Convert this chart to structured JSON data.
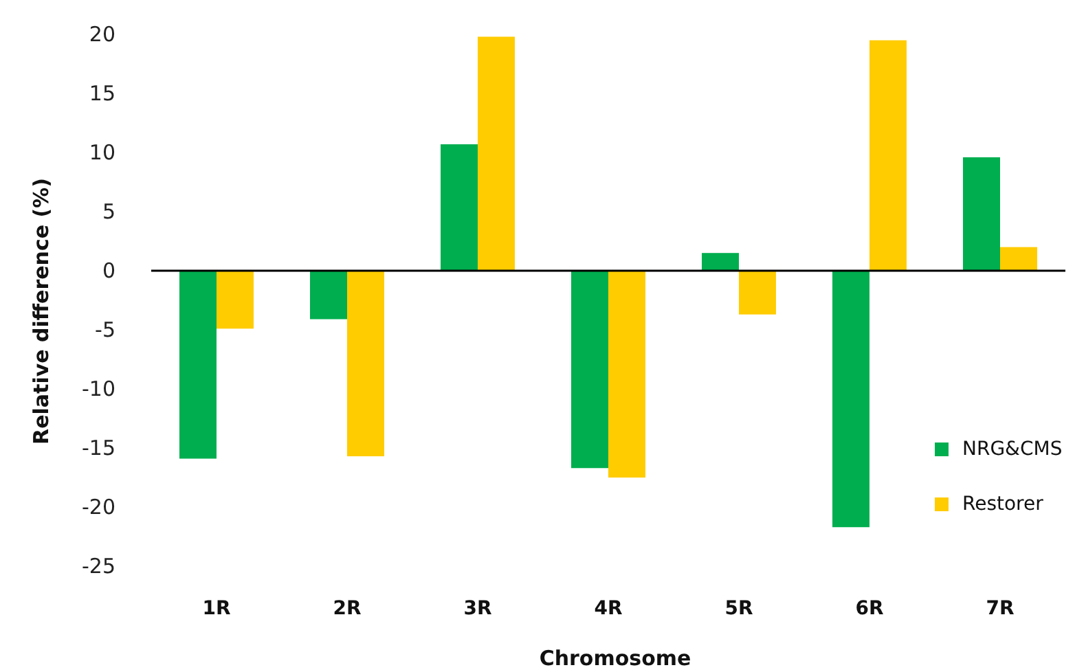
{
  "chart_data": {
    "type": "bar",
    "xlabel": "Chromosome",
    "ylabel": "Relative difference (%)",
    "categories": [
      "1R",
      "2R",
      "3R",
      "4R",
      "5R",
      "6R",
      "7R"
    ],
    "series": [
      {
        "name": "NRG&CMS",
        "color": "#00ae4f",
        "values": [
          -15.9,
          -4.1,
          10.7,
          -16.7,
          1.5,
          -21.7,
          9.6
        ]
      },
      {
        "name": "Restorer",
        "color": "#ffcc00",
        "values": [
          -4.9,
          -15.7,
          19.8,
          -17.5,
          -3.7,
          19.5,
          2.0
        ]
      }
    ],
    "ylim": [
      -25,
      20
    ],
    "yticks": [
      -25,
      -20,
      -15,
      -10,
      -5,
      0,
      5,
      10,
      15,
      20
    ],
    "legend": "right"
  }
}
